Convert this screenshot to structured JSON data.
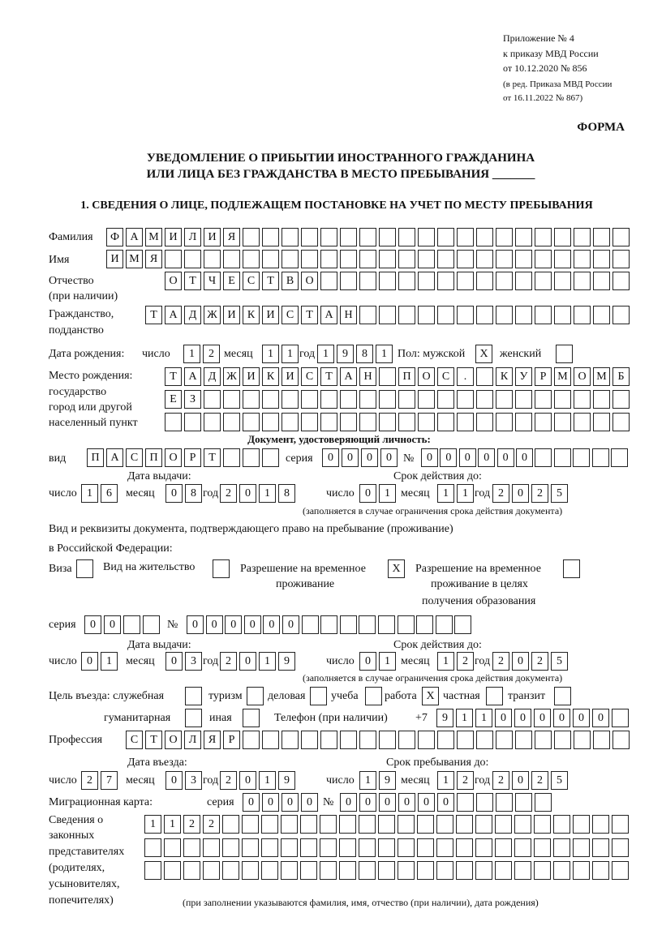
{
  "header": {
    "appendix": "Приложение № 4",
    "order": "к приказу МВД России",
    "order_date": "от 10.12.2020 № 856",
    "revision_1": "(в ред. Приказа МВД России",
    "revision_2": "от 16.11.2022 № 867)",
    "form": "ФОРМА",
    "title_1": "УВЕДОМЛЕНИЕ О ПРИБЫТИИ ИНОСТРАННОГО ГРАЖДАНИНА",
    "title_2": "ИЛИ ЛИЦА БЕЗ ГРАЖДАНСТВА В МЕСТО ПРЕБЫВАНИЯ _______",
    "section_1": "1. СВЕДЕНИЯ О ЛИЦЕ, ПОДЛЕЖАЩЕМ ПОСТАНОВКЕ НА УЧЕТ ПО МЕСТУ ПРЕБЫВАНИЯ"
  },
  "person": {
    "surname_label": "Фамилия",
    "surname": "ФАМИЛИЯ",
    "name_label": "Имя",
    "name": "ИМЯ",
    "patronymic_label_1": "Отчество",
    "patronymic_label_2": "(при наличии)",
    "patronymic": "ОТЧЕСТВО",
    "citizenship_label_1": "Гражданство,",
    "citizenship_label_2": "подданство",
    "citizenship": "ТАДЖИКИСТАН",
    "birth_label": "Дата рождения:",
    "day_label": "число",
    "month_label": "месяц",
    "year_label": "год",
    "birth_day": "12",
    "birth_month": "11",
    "birth_year": "1981",
    "sex_label": "Пол: мужской",
    "male": "X",
    "female_label": "женский",
    "female": "",
    "birthplace_label_1": "Место рождения:",
    "birthplace_label_2": "государство",
    "birthplace_label_3": "город или другой",
    "birthplace_label_4": "населенный пункт",
    "birthplace_1": "ТАДЖИКИСТАН ПОС. КУРМОМБ",
    "birthplace_2": "ЕЗ",
    "birthplace_3": ""
  },
  "identity_doc": {
    "heading": "Документ, удостоверяющий личность:",
    "kind_label": "вид",
    "kind": "ПАСПОРТ",
    "series_label": "серия",
    "series": "0000",
    "number_label": "№",
    "number": "000000",
    "issue_label": "Дата выдачи:",
    "issue_day": "16",
    "issue_month": "08",
    "issue_year": "2018",
    "valid_label": "Срок действия до:",
    "valid_day": "01",
    "valid_month": "11",
    "valid_year": "2025",
    "note": "(заполняется в случае ограничения срока действия документа)"
  },
  "stay_doc": {
    "heading_1": "Вид и реквизиты документа, подтверждающего право на пребывание (проживание)",
    "heading_2": "в Российской Федерации:",
    "visa_label": "Виза",
    "visa": "",
    "residence_label": "Вид на жительство",
    "residence": "",
    "temp_label_1": "Разрешение на временное",
    "temp_label_2": "проживание",
    "temp": "X",
    "edu_label_1": "Разрешение на временное",
    "edu_label_2": "проживание в целях",
    "edu_label_3": "получения образования",
    "edu": "",
    "series_label": "серия",
    "series": "00",
    "number_label": "№",
    "number": "000000",
    "issue_label": "Дата выдачи:",
    "issue_day": "01",
    "issue_month": "03",
    "issue_year": "2019",
    "valid_label": "Срок действия до:",
    "valid_day": "01",
    "valid_month": "12",
    "valid_year": "2025",
    "note": "(заполняется в случае ограничения срока действия документа)"
  },
  "purpose": {
    "label": "Цель въезда: служебная",
    "official": "",
    "tourism_label": "туризм",
    "tourism": "",
    "business_label": "деловая",
    "business": "",
    "study_label": "учеба",
    "study": "",
    "work_label": "работа",
    "work": "X",
    "private_label": "частная",
    "private": "",
    "transit_label": "транзит",
    "transit": "",
    "humanitarian_label": "гуманитарная",
    "humanitarian": "",
    "other_label": "иная",
    "other": "",
    "phone_label": "Телефон (при наличии)",
    "phone_prefix": "+7",
    "phone": "911000000"
  },
  "profession": {
    "label": "Профессия",
    "value": "СТОЛЯР"
  },
  "entry": {
    "entry_label": "Дата въезда:",
    "entry_day": "27",
    "entry_month": "03",
    "entry_year": "2019",
    "stay_label": "Срок пребывания до:",
    "stay_day": "19",
    "stay_month": "12",
    "stay_year": "2025"
  },
  "migration_card": {
    "label": "Миграционная карта:",
    "series_label": "серия",
    "series": "0000",
    "number_label": "№",
    "number": "000000"
  },
  "representatives": {
    "label_1": "Сведения о",
    "label_2": "законных",
    "label_3": "представителях",
    "label_4": "(родителях,",
    "label_5": "усыновителях,",
    "label_6": "попечителях)",
    "row_1": "1122",
    "row_2": "",
    "row_3": "",
    "note": "(при заполнении указываются фамилия, имя, отчество (при наличии), дата рождения)"
  }
}
